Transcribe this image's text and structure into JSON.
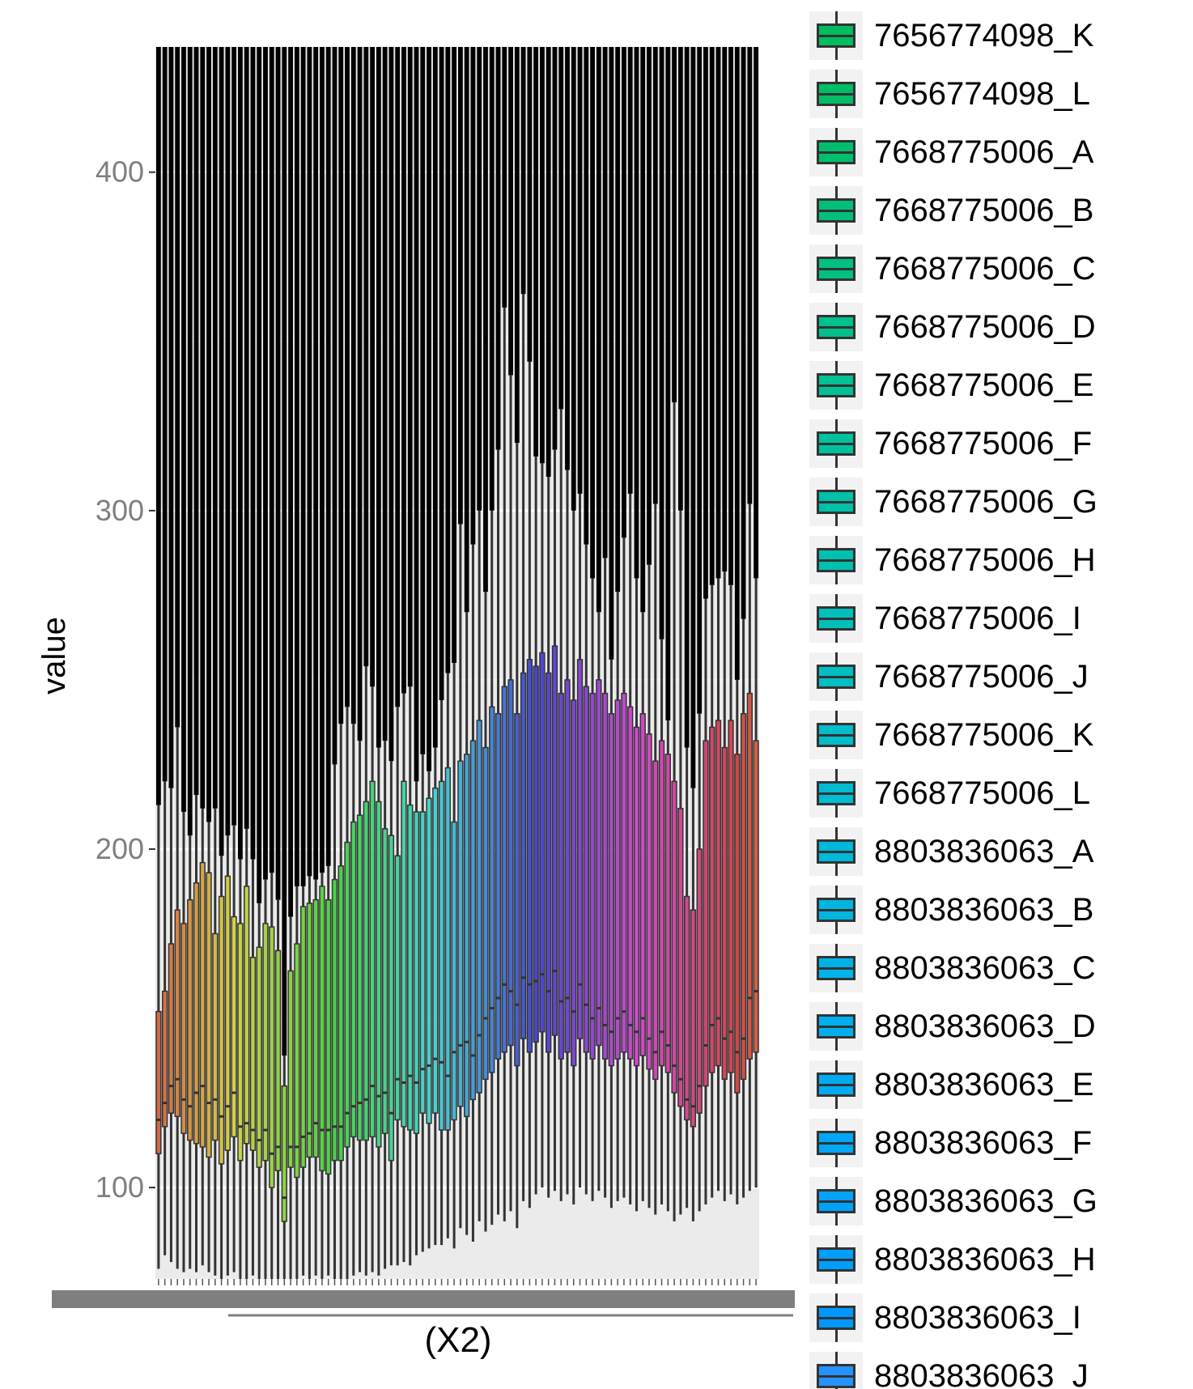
{
  "chart_data": {
    "type": "boxplot",
    "title": "",
    "xlabel": "(X2)",
    "ylabel": "value",
    "yticks": [
      100,
      200,
      300,
      400
    ],
    "ylim": [
      73,
      437
    ],
    "legend_position": "right",
    "legend_entries": [
      {
        "name": "7656774098_K",
        "color": "#00BC5F"
      },
      {
        "name": "7656774098_L",
        "color": "#00BD66"
      },
      {
        "name": "7668775006_A",
        "color": "#00BE6E"
      },
      {
        "name": "7668775006_B",
        "color": "#00BF78"
      },
      {
        "name": "7668775006_C",
        "color": "#00C082"
      },
      {
        "name": "7668775006_D",
        "color": "#00C08B"
      },
      {
        "name": "7668775006_E",
        "color": "#00C095"
      },
      {
        "name": "7668775006_F",
        "color": "#00C09E"
      },
      {
        "name": "7668775006_G",
        "color": "#00C0A7"
      },
      {
        "name": "7668775006_H",
        "color": "#00C0B0"
      },
      {
        "name": "7668775006_I",
        "color": "#00C0B9"
      },
      {
        "name": "7668775006_J",
        "color": "#00BFC2"
      },
      {
        "name": "7668775006_K",
        "color": "#00BDCA"
      },
      {
        "name": "7668775006_L",
        "color": "#00BBD2"
      },
      {
        "name": "8803836063_A",
        "color": "#00B9DA"
      },
      {
        "name": "8803836063_B",
        "color": "#00B6E1"
      },
      {
        "name": "8803836063_C",
        "color": "#00B3E7"
      },
      {
        "name": "8803836063_D",
        "color": "#00AFED"
      },
      {
        "name": "8803836063_E",
        "color": "#00ABF2"
      },
      {
        "name": "8803836063_F",
        "color": "#00A7F6"
      },
      {
        "name": "8803836063_G",
        "color": "#00A2FA"
      },
      {
        "name": "8803836063_H",
        "color": "#009DFD"
      },
      {
        "name": "8803836063_I",
        "color": "#0098FF"
      },
      {
        "name": "8803836063_J",
        "color": "#2692FF"
      }
    ],
    "box_count": 96,
    "boxes": [
      {
        "lower": 76,
        "q1": 110,
        "median": 120,
        "q3": 152,
        "upper": 213
      },
      {
        "lower": 80,
        "q1": 118,
        "median": 125,
        "q3": 158,
        "upper": 220
      },
      {
        "lower": 78,
        "q1": 122,
        "median": 130,
        "q3": 172,
        "upper": 218
      },
      {
        "lower": 76,
        "q1": 121,
        "median": 132,
        "q3": 182,
        "upper": 236
      },
      {
        "lower": 75,
        "q1": 116,
        "median": 126,
        "q3": 178,
        "upper": 211
      },
      {
        "lower": 76,
        "q1": 114,
        "median": 124,
        "q3": 185,
        "upper": 204
      },
      {
        "lower": 75,
        "q1": 113,
        "median": 128,
        "q3": 190,
        "upper": 216
      },
      {
        "lower": 77,
        "q1": 112,
        "median": 130,
        "q3": 196,
        "upper": 212
      },
      {
        "lower": 75,
        "q1": 109,
        "median": 125,
        "q3": 193,
        "upper": 208
      },
      {
        "lower": 74,
        "q1": 114,
        "median": 126,
        "q3": 175,
        "upper": 212
      },
      {
        "lower": 73,
        "q1": 107,
        "median": 121,
        "q3": 186,
        "upper": 198
      },
      {
        "lower": 74,
        "q1": 111,
        "median": 124,
        "q3": 192,
        "upper": 204
      },
      {
        "lower": 75,
        "q1": 115,
        "median": 128,
        "q3": 180,
        "upper": 207
      },
      {
        "lower": 72,
        "q1": 108,
        "median": 118,
        "q3": 178,
        "upper": 197
      },
      {
        "lower": 73,
        "q1": 113,
        "median": 119,
        "q3": 189,
        "upper": 206
      },
      {
        "lower": 74,
        "q1": 111,
        "median": 117,
        "q3": 168,
        "upper": 197
      },
      {
        "lower": 72,
        "q1": 106,
        "median": 114,
        "q3": 171,
        "upper": 184
      },
      {
        "lower": 72,
        "q1": 108,
        "median": 117,
        "q3": 178,
        "upper": 191
      },
      {
        "lower": 70,
        "q1": 100,
        "median": 110,
        "q3": 177,
        "upper": 193
      },
      {
        "lower": 71,
        "q1": 105,
        "median": 112,
        "q3": 170,
        "upper": 185
      },
      {
        "lower": 70,
        "q1": 90,
        "median": 97,
        "q3": 130,
        "upper": 139
      },
      {
        "lower": 73,
        "q1": 106,
        "median": 112,
        "q3": 164,
        "upper": 180
      },
      {
        "lower": 72,
        "q1": 103,
        "median": 112,
        "q3": 172,
        "upper": 189
      },
      {
        "lower": 74,
        "q1": 106,
        "median": 115,
        "q3": 183,
        "upper": 189
      },
      {
        "lower": 73,
        "q1": 109,
        "median": 116,
        "q3": 184,
        "upper": 192
      },
      {
        "lower": 74,
        "q1": 109,
        "median": 119,
        "q3": 185,
        "upper": 191
      },
      {
        "lower": 73,
        "q1": 105,
        "median": 117,
        "q3": 189,
        "upper": 193
      },
      {
        "lower": 74,
        "q1": 104,
        "median": 117,
        "q3": 185,
        "upper": 195
      },
      {
        "lower": 73,
        "q1": 108,
        "median": 118,
        "q3": 191,
        "upper": 225
      },
      {
        "lower": 72,
        "q1": 108,
        "median": 118,
        "q3": 195,
        "upper": 237
      },
      {
        "lower": 73,
        "q1": 112,
        "median": 122,
        "q3": 202,
        "upper": 242
      },
      {
        "lower": 74,
        "q1": 115,
        "median": 124,
        "q3": 208,
        "upper": 237
      },
      {
        "lower": 75,
        "q1": 114,
        "median": 125,
        "q3": 210,
        "upper": 232
      },
      {
        "lower": 74,
        "q1": 114,
        "median": 126,
        "q3": 214,
        "upper": 254
      },
      {
        "lower": 75,
        "q1": 115,
        "median": 130,
        "q3": 220,
        "upper": 248
      },
      {
        "lower": 74,
        "q1": 112,
        "median": 127,
        "q3": 214,
        "upper": 230
      },
      {
        "lower": 76,
        "q1": 116,
        "median": 128,
        "q3": 206,
        "upper": 232
      },
      {
        "lower": 77,
        "q1": 108,
        "median": 122,
        "q3": 204,
        "upper": 226
      },
      {
        "lower": 77,
        "q1": 120,
        "median": 132,
        "q3": 198,
        "upper": 242
      },
      {
        "lower": 78,
        "q1": 118,
        "median": 131,
        "q3": 220,
        "upper": 246
      },
      {
        "lower": 77,
        "q1": 117,
        "median": 133,
        "q3": 213,
        "upper": 248
      },
      {
        "lower": 80,
        "q1": 116,
        "median": 131,
        "q3": 211,
        "upper": 220
      },
      {
        "lower": 81,
        "q1": 122,
        "median": 135,
        "q3": 211,
        "upper": 228
      },
      {
        "lower": 82,
        "q1": 119,
        "median": 136,
        "q3": 215,
        "upper": 223
      },
      {
        "lower": 83,
        "q1": 122,
        "median": 138,
        "q3": 218,
        "upper": 230
      },
      {
        "lower": 83,
        "q1": 117,
        "median": 137,
        "q3": 220,
        "upper": 244
      },
      {
        "lower": 85,
        "q1": 117,
        "median": 133,
        "q3": 224,
        "upper": 252
      },
      {
        "lower": 82,
        "q1": 120,
        "median": 140,
        "q3": 208,
        "upper": 255
      },
      {
        "lower": 88,
        "q1": 124,
        "median": 142,
        "q3": 226,
        "upper": 296
      },
      {
        "lower": 86,
        "q1": 121,
        "median": 143,
        "q3": 228,
        "upper": 270
      },
      {
        "lower": 84,
        "q1": 126,
        "median": 139,
        "q3": 232,
        "upper": 290
      },
      {
        "lower": 90,
        "q1": 128,
        "median": 145,
        "q3": 238,
        "upper": 300
      },
      {
        "lower": 87,
        "q1": 132,
        "median": 150,
        "q3": 230,
        "upper": 276
      },
      {
        "lower": 89,
        "q1": 134,
        "median": 153,
        "q3": 242,
        "upper": 300
      },
      {
        "lower": 92,
        "q1": 138,
        "median": 156,
        "q3": 240,
        "upper": 318
      },
      {
        "lower": 90,
        "q1": 140,
        "median": 160,
        "q3": 248,
        "upper": 360
      },
      {
        "lower": 93,
        "q1": 142,
        "median": 158,
        "q3": 250,
        "upper": 340
      },
      {
        "lower": 88,
        "q1": 136,
        "median": 154,
        "q3": 240,
        "upper": 320
      },
      {
        "lower": 96,
        "q1": 144,
        "median": 162,
        "q3": 252,
        "upper": 364
      },
      {
        "lower": 94,
        "q1": 140,
        "median": 160,
        "q3": 256,
        "upper": 344
      },
      {
        "lower": 98,
        "q1": 143,
        "median": 161,
        "q3": 254,
        "upper": 316
      },
      {
        "lower": 100,
        "q1": 146,
        "median": 163,
        "q3": 258,
        "upper": 314
      },
      {
        "lower": 97,
        "q1": 140,
        "median": 158,
        "q3": 252,
        "upper": 310
      },
      {
        "lower": 99,
        "q1": 145,
        "median": 164,
        "q3": 260,
        "upper": 318
      },
      {
        "lower": 96,
        "q1": 138,
        "median": 155,
        "q3": 246,
        "upper": 330
      },
      {
        "lower": 98,
        "q1": 140,
        "median": 156,
        "q3": 250,
        "upper": 312
      },
      {
        "lower": 95,
        "q1": 136,
        "median": 152,
        "q3": 244,
        "upper": 300
      },
      {
        "lower": 100,
        "q1": 144,
        "median": 160,
        "q3": 256,
        "upper": 305
      },
      {
        "lower": 98,
        "q1": 140,
        "median": 154,
        "q3": 248,
        "upper": 290
      },
      {
        "lower": 96,
        "q1": 138,
        "median": 150,
        "q3": 246,
        "upper": 280
      },
      {
        "lower": 99,
        "q1": 142,
        "median": 153,
        "q3": 250,
        "upper": 270
      },
      {
        "lower": 97,
        "q1": 138,
        "median": 148,
        "q3": 246,
        "upper": 286
      },
      {
        "lower": 94,
        "q1": 136,
        "median": 146,
        "q3": 240,
        "upper": 256
      },
      {
        "lower": 96,
        "q1": 138,
        "median": 150,
        "q3": 244,
        "upper": 276
      },
      {
        "lower": 97,
        "q1": 140,
        "median": 152,
        "q3": 246,
        "upper": 292
      },
      {
        "lower": 95,
        "q1": 138,
        "median": 148,
        "q3": 242,
        "upper": 305
      },
      {
        "lower": 93,
        "q1": 136,
        "median": 146,
        "q3": 236,
        "upper": 280
      },
      {
        "lower": 96,
        "q1": 139,
        "median": 150,
        "q3": 240,
        "upper": 270
      },
      {
        "lower": 94,
        "q1": 135,
        "median": 144,
        "q3": 234,
        "upper": 284
      },
      {
        "lower": 92,
        "q1": 132,
        "median": 140,
        "q3": 226,
        "upper": 302
      },
      {
        "lower": 95,
        "q1": 136,
        "median": 146,
        "q3": 232,
        "upper": 262
      },
      {
        "lower": 93,
        "q1": 134,
        "median": 142,
        "q3": 228,
        "upper": 238
      },
      {
        "lower": 90,
        "q1": 128,
        "median": 136,
        "q3": 220,
        "upper": 332
      },
      {
        "lower": 92,
        "q1": 124,
        "median": 132,
        "q3": 212,
        "upper": 300
      },
      {
        "lower": 94,
        "q1": 120,
        "median": 126,
        "q3": 186,
        "upper": 230
      },
      {
        "lower": 90,
        "q1": 118,
        "median": 124,
        "q3": 182,
        "upper": 218
      },
      {
        "lower": 93,
        "q1": 122,
        "median": 130,
        "q3": 200,
        "upper": 240
      },
      {
        "lower": 95,
        "q1": 130,
        "median": 142,
        "q3": 232,
        "upper": 274
      },
      {
        "lower": 97,
        "q1": 134,
        "median": 148,
        "q3": 236,
        "upper": 278
      },
      {
        "lower": 99,
        "q1": 136,
        "median": 150,
        "q3": 238,
        "upper": 280
      },
      {
        "lower": 96,
        "q1": 132,
        "median": 144,
        "q3": 230,
        "upper": 282
      },
      {
        "lower": 98,
        "q1": 134,
        "median": 146,
        "q3": 238,
        "upper": 278
      },
      {
        "lower": 95,
        "q1": 128,
        "median": 140,
        "q3": 228,
        "upper": 250
      },
      {
        "lower": 97,
        "q1": 132,
        "median": 144,
        "q3": 240,
        "upper": 268
      },
      {
        "lower": 99,
        "q1": 138,
        "median": 156,
        "q3": 246,
        "upper": 302
      },
      {
        "lower": 100,
        "q1": 140,
        "median": 158,
        "q3": 232,
        "upper": 280
      }
    ]
  }
}
